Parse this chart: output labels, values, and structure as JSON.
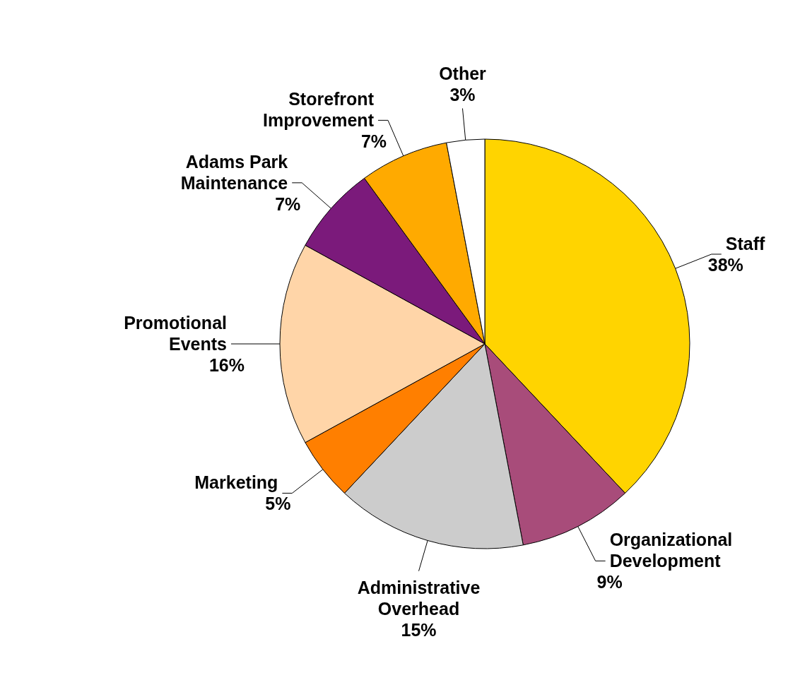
{
  "chart_data": {
    "type": "pie",
    "categories": [
      "Staff",
      "Organizational Development",
      "Administrative Overhead",
      "Marketing",
      "Promotional Events",
      "Adams Park Maintenance",
      "Storefront Improvement",
      "Other"
    ],
    "values": [
      38,
      9,
      15,
      5,
      16,
      7,
      7,
      3
    ],
    "value_labels": [
      "38%",
      "9%",
      "15%",
      "5%",
      "16%",
      "7%",
      "7%",
      "3%"
    ],
    "colors": [
      "#ffd400",
      "#a84c7a",
      "#cccccc",
      "#ff7f00",
      "#ffd5a8",
      "#7b1a7b",
      "#ffaa00",
      "#ffffff"
    ],
    "legend": false
  }
}
